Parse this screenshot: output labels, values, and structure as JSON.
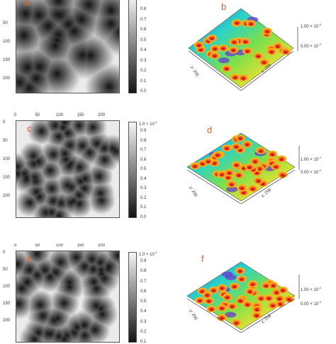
{
  "panels_2d": [
    {
      "letter": "a",
      "x_ticks": [],
      "y_ticks": [
        "50",
        "100",
        "150",
        "200"
      ],
      "colorbar_ticks": [
        "0.9",
        "0.8",
        "0.7",
        "0.6",
        "0.5",
        "0.4",
        "0.3",
        "0.2",
        "0.1",
        "0.0"
      ],
      "colorbar_top": "",
      "colorbar_exp": ""
    },
    {
      "letter": "c",
      "x_ticks": [
        "0",
        "50",
        "100",
        "150",
        "200"
      ],
      "y_ticks": [
        "0",
        "50",
        "100",
        "150",
        "200"
      ],
      "colorbar_ticks": [
        "0.9",
        "0.8",
        "0.7",
        "0.6",
        "0.5",
        "0.4",
        "0.3",
        "0.2",
        "0.1",
        "0.0"
      ],
      "colorbar_top": "1.0 × 10",
      "colorbar_exp": "-3"
    },
    {
      "letter": "e",
      "x_ticks": [
        "0",
        "50",
        "100",
        "150",
        "200"
      ],
      "y_ticks": [
        "0",
        "50",
        "100",
        "150",
        "200"
      ],
      "colorbar_ticks": [
        "0.9",
        "0.8",
        "0.7",
        "0.6",
        "0.5",
        "0.4",
        "0.3",
        "0.2",
        "0.1"
      ],
      "colorbar_top": "1.0 × 10",
      "colorbar_exp": "-3"
    }
  ],
  "panels_3d": [
    {
      "letter": "b",
      "z_top": "1.00 × 10",
      "z_bottom": "0.00 × 10",
      "z_exp": "-3",
      "axis_y": "y: 256",
      "axis_x": "x: 256"
    },
    {
      "letter": "d",
      "z_top": "1.00 × 10",
      "z_bottom": "0.00 × 10",
      "z_exp": "-3",
      "axis_y": "y: 256",
      "axis_x": "x: 256"
    },
    {
      "letter": "f",
      "z_top": "1.00 × 10",
      "z_bottom": "0.00 × 10",
      "z_exp": "-3",
      "axis_y": "y: 256",
      "axis_x": "x: 256"
    }
  ],
  "colors": {
    "letter_2d": "#e0602a",
    "letter_3d": "#e0602a",
    "map_dark": "#151515",
    "map_light": "#f2f2f2"
  }
}
